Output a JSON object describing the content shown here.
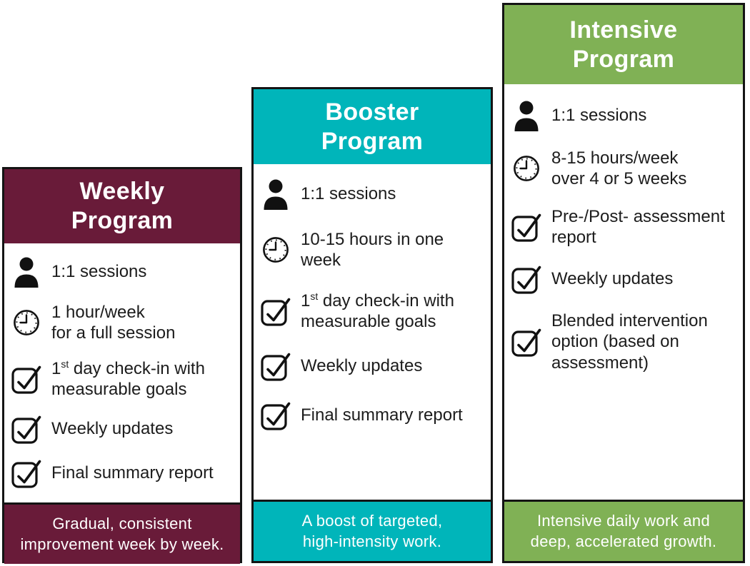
{
  "page": {
    "background_color": "#ffffff",
    "border_color": "#141414",
    "body_text_color": "#1c1c1c"
  },
  "cards": [
    {
      "name": "weekly",
      "accent_color": "#691b39",
      "title_lines": [
        "Weekly",
        "Program"
      ],
      "items": [
        {
          "icon": "person-icon",
          "parts": [
            {
              "text": "1:1 sessions"
            }
          ]
        },
        {
          "icon": "clock-icon",
          "parts": [
            {
              "text": "1 hour/week"
            },
            {
              "break": true
            },
            {
              "text": "for a full session"
            }
          ]
        },
        {
          "icon": "checkbox-icon",
          "parts": [
            {
              "text": "1"
            },
            {
              "text": "st",
              "sup": true
            },
            {
              "text": " day check-in with"
            },
            {
              "break": true
            },
            {
              "text": "measurable goals"
            }
          ]
        },
        {
          "icon": "checkbox-icon",
          "parts": [
            {
              "text": "Weekly updates"
            }
          ]
        },
        {
          "icon": "checkbox-icon",
          "parts": [
            {
              "text": "Final summary report"
            }
          ]
        }
      ],
      "footer_lines": [
        "Gradual, consistent",
        "improvement week by week."
      ]
    },
    {
      "name": "booster",
      "accent_color": "#00b5ba",
      "title_lines": [
        "Booster",
        "Program"
      ],
      "items": [
        {
          "icon": "person-icon",
          "parts": [
            {
              "text": "1:1 sessions"
            }
          ]
        },
        {
          "icon": "clock-icon",
          "parts": [
            {
              "text": "10-15 hours in one"
            },
            {
              "break": true
            },
            {
              "text": "week"
            }
          ]
        },
        {
          "icon": "checkbox-icon",
          "parts": [
            {
              "text": "1"
            },
            {
              "text": "st",
              "sup": true
            },
            {
              "text": " day check-in with"
            },
            {
              "break": true
            },
            {
              "text": "measurable goals"
            }
          ]
        },
        {
          "icon": "checkbox-icon",
          "parts": [
            {
              "text": "Weekly updates"
            }
          ]
        },
        {
          "icon": "checkbox-icon",
          "parts": [
            {
              "text": "Final summary report"
            }
          ]
        }
      ],
      "footer_lines": [
        "A boost of targeted,",
        "high-intensity work."
      ]
    },
    {
      "name": "intensive",
      "accent_color": "#80b155",
      "title_lines": [
        "Intensive",
        "Program"
      ],
      "items": [
        {
          "icon": "person-icon",
          "parts": [
            {
              "text": "1:1 sessions"
            }
          ]
        },
        {
          "icon": "clock-icon",
          "parts": [
            {
              "text": "8-15 hours/week"
            },
            {
              "break": true
            },
            {
              "text": "over 4 or 5 weeks"
            }
          ]
        },
        {
          "icon": "checkbox-icon",
          "parts": [
            {
              "text": "Pre-/Post- assessment"
            },
            {
              "break": true
            },
            {
              "text": "report"
            }
          ]
        },
        {
          "icon": "checkbox-icon",
          "parts": [
            {
              "text": "Weekly updates"
            }
          ]
        },
        {
          "icon": "checkbox-icon",
          "parts": [
            {
              "text": "Blended intervention"
            },
            {
              "break": true
            },
            {
              "text": "option (based on"
            },
            {
              "break": true
            },
            {
              "text": "assessment)"
            }
          ]
        }
      ],
      "footer_lines": [
        "Intensive daily work and",
        "deep, accelerated growth."
      ]
    }
  ]
}
